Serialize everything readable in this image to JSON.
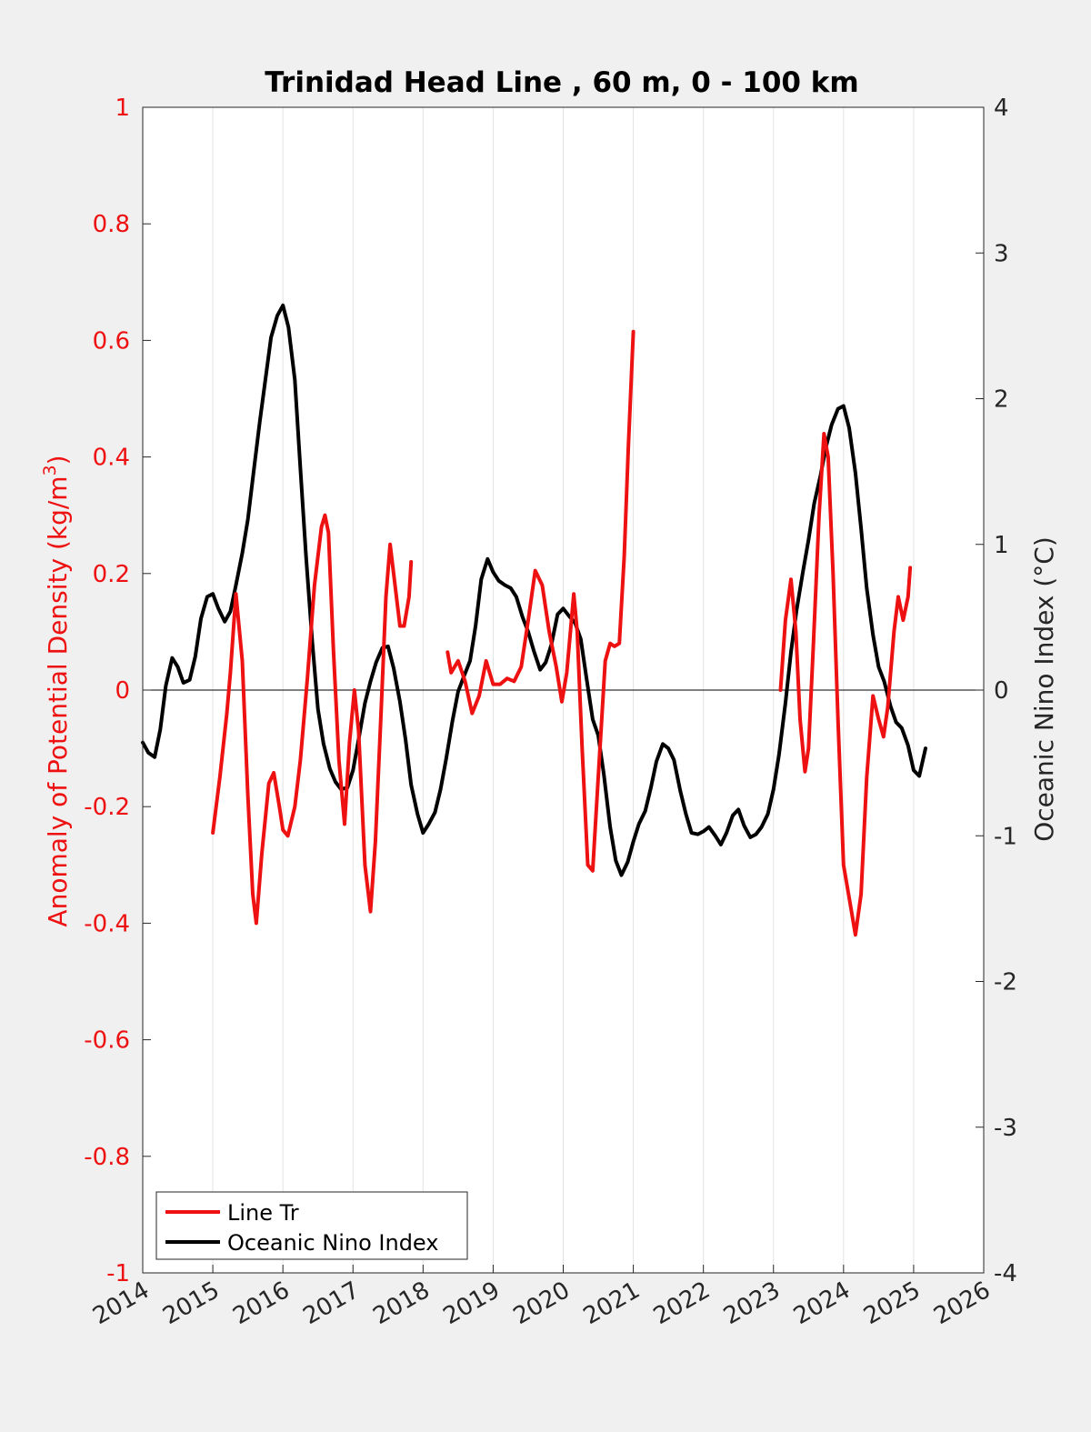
{
  "chart_data": {
    "type": "line",
    "title": "Trinidad Head Line , 60 m, 0 - 100 km",
    "ylabel_left_main": "Anomaly of Potential Density (kg/m",
    "ylabel_left_sup": "3",
    "ylabel_left_close": ")",
    "ylabel_right": "Oceanic Nino Index (°C)",
    "xlim": [
      2014,
      2026
    ],
    "ylim_left": [
      -1,
      1
    ],
    "ylim_right": [
      -4,
      4
    ],
    "x_ticks": [
      "2014",
      "2015",
      "2016",
      "2017",
      "2018",
      "2019",
      "2020",
      "2021",
      "2022",
      "2023",
      "2024",
      "2025",
      "2026"
    ],
    "y_ticks_left": [
      "-1",
      "-0.8",
      "-0.6",
      "-0.4",
      "-0.2",
      "0",
      "0.2",
      "0.4",
      "0.6",
      "0.8",
      "1"
    ],
    "y_ticks_right": [
      "-4",
      "-3",
      "-2",
      "-1",
      "0",
      "1",
      "2",
      "3",
      "4"
    ],
    "grid": "vertical",
    "legend_position": "bottom-left",
    "colors": {
      "line_tr": "#ee1111",
      "oni": "#000000",
      "plot_bg": "#ffffff",
      "figure_bg": "#f0f0f0",
      "left_axis": "#ee1111"
    },
    "series": [
      {
        "name": "Line Tr",
        "axis": "left",
        "segments": [
          [
            [
              2015.0,
              -0.245
            ],
            [
              2015.1,
              -0.15
            ],
            [
              2015.2,
              -0.04
            ],
            [
              2015.25,
              0.03
            ],
            [
              2015.33,
              0.165
            ],
            [
              2015.42,
              0.05
            ],
            [
              2015.5,
              -0.18
            ],
            [
              2015.57,
              -0.35
            ],
            [
              2015.62,
              -0.4
            ],
            [
              2015.7,
              -0.28
            ],
            [
              2015.8,
              -0.16
            ],
            [
              2015.87,
              -0.142
            ],
            [
              2015.95,
              -0.2
            ],
            [
              2016.0,
              -0.24
            ],
            [
              2016.07,
              -0.25
            ],
            [
              2016.17,
              -0.2
            ],
            [
              2016.25,
              -0.12
            ],
            [
              2016.35,
              0.02
            ],
            [
              2016.45,
              0.18
            ],
            [
              2016.55,
              0.28
            ],
            [
              2016.6,
              0.3
            ],
            [
              2016.65,
              0.27
            ],
            [
              2016.72,
              0.07
            ],
            [
              2016.8,
              -0.12
            ],
            [
              2016.88,
              -0.23
            ],
            [
              2016.95,
              -0.09
            ],
            [
              2017.02,
              0.0
            ],
            [
              2017.08,
              -0.07
            ],
            [
              2017.17,
              -0.3
            ],
            [
              2017.25,
              -0.38
            ],
            [
              2017.32,
              -0.26
            ],
            [
              2017.4,
              -0.04
            ],
            [
              2017.47,
              0.16
            ],
            [
              2017.53,
              0.25
            ],
            [
              2017.6,
              0.18
            ],
            [
              2017.67,
              0.11
            ],
            [
              2017.73,
              0.11
            ],
            [
              2017.8,
              0.16
            ],
            [
              2017.83,
              0.22
            ]
          ],
          [
            [
              2018.35,
              0.065
            ],
            [
              2018.4,
              0.03
            ],
            [
              2018.5,
              0.05
            ],
            [
              2018.6,
              0.015
            ],
            [
              2018.7,
              -0.04
            ],
            [
              2018.8,
              -0.01
            ],
            [
              2018.9,
              0.05
            ],
            [
              2019.0,
              0.01
            ],
            [
              2019.1,
              0.01
            ],
            [
              2019.2,
              0.02
            ],
            [
              2019.3,
              0.015
            ],
            [
              2019.4,
              0.04
            ],
            [
              2019.5,
              0.12
            ],
            [
              2019.6,
              0.205
            ],
            [
              2019.7,
              0.18
            ],
            [
              2019.8,
              0.1
            ],
            [
              2019.9,
              0.04
            ],
            [
              2019.98,
              -0.02
            ],
            [
              2020.05,
              0.03
            ],
            [
              2020.15,
              0.165
            ],
            [
              2020.2,
              0.1
            ],
            [
              2020.27,
              -0.1
            ],
            [
              2020.35,
              -0.3
            ],
            [
              2020.42,
              -0.31
            ],
            [
              2020.5,
              -0.15
            ],
            [
              2020.6,
              0.05
            ],
            [
              2020.67,
              0.08
            ],
            [
              2020.73,
              0.075
            ],
            [
              2020.8,
              0.08
            ],
            [
              2020.87,
              0.23
            ],
            [
              2020.93,
              0.42
            ],
            [
              2021.0,
              0.615
            ]
          ],
          [
            [
              2023.1,
              0.0
            ],
            [
              2023.17,
              0.12
            ],
            [
              2023.25,
              0.19
            ],
            [
              2023.32,
              0.1
            ],
            [
              2023.38,
              -0.05
            ],
            [
              2023.45,
              -0.14
            ],
            [
              2023.5,
              -0.1
            ],
            [
              2023.57,
              0.08
            ],
            [
              2023.65,
              0.3
            ],
            [
              2023.72,
              0.44
            ],
            [
              2023.78,
              0.4
            ],
            [
              2023.85,
              0.2
            ],
            [
              2023.92,
              -0.05
            ],
            [
              2024.0,
              -0.3
            ],
            [
              2024.1,
              -0.37
            ],
            [
              2024.17,
              -0.42
            ],
            [
              2024.25,
              -0.35
            ],
            [
              2024.33,
              -0.15
            ],
            [
              2024.42,
              -0.01
            ],
            [
              2024.5,
              -0.05
            ],
            [
              2024.57,
              -0.08
            ],
            [
              2024.63,
              -0.03
            ],
            [
              2024.72,
              0.1
            ],
            [
              2024.78,
              0.16
            ],
            [
              2024.85,
              0.12
            ],
            [
              2024.92,
              0.16
            ],
            [
              2024.95,
              0.21
            ]
          ]
        ]
      },
      {
        "name": "Oceanic Nino Index",
        "axis": "right",
        "segments": [
          [
            [
              2014.0,
              -0.36
            ],
            [
              2014.08,
              -0.43
            ],
            [
              2014.17,
              -0.46
            ],
            [
              2014.25,
              -0.27
            ],
            [
              2014.33,
              0.03
            ],
            [
              2014.42,
              0.22
            ],
            [
              2014.5,
              0.16
            ],
            [
              2014.58,
              0.05
            ],
            [
              2014.67,
              0.07
            ],
            [
              2014.75,
              0.23
            ],
            [
              2014.83,
              0.49
            ],
            [
              2014.92,
              0.64
            ],
            [
              2015.0,
              0.66
            ],
            [
              2015.08,
              0.56
            ],
            [
              2015.17,
              0.47
            ],
            [
              2015.25,
              0.54
            ],
            [
              2015.33,
              0.72
            ],
            [
              2015.42,
              0.94
            ],
            [
              2015.5,
              1.17
            ],
            [
              2015.58,
              1.49
            ],
            [
              2015.67,
              1.84
            ],
            [
              2015.75,
              2.13
            ],
            [
              2015.83,
              2.42
            ],
            [
              2015.92,
              2.57
            ],
            [
              2016.0,
              2.64
            ],
            [
              2016.08,
              2.49
            ],
            [
              2016.17,
              2.13
            ],
            [
              2016.25,
              1.52
            ],
            [
              2016.33,
              0.92
            ],
            [
              2016.42,
              0.33
            ],
            [
              2016.5,
              -0.13
            ],
            [
              2016.58,
              -0.37
            ],
            [
              2016.67,
              -0.54
            ],
            [
              2016.75,
              -0.63
            ],
            [
              2016.83,
              -0.68
            ],
            [
              2016.92,
              -0.67
            ],
            [
              2017.0,
              -0.55
            ],
            [
              2017.08,
              -0.34
            ],
            [
              2017.17,
              -0.09
            ],
            [
              2017.25,
              0.06
            ],
            [
              2017.33,
              0.19
            ],
            [
              2017.42,
              0.29
            ],
            [
              2017.5,
              0.3
            ],
            [
              2017.58,
              0.15
            ],
            [
              2017.67,
              -0.08
            ],
            [
              2017.75,
              -0.34
            ],
            [
              2017.83,
              -0.65
            ],
            [
              2017.92,
              -0.85
            ],
            [
              2018.0,
              -0.98
            ],
            [
              2018.08,
              -0.92
            ],
            [
              2018.17,
              -0.84
            ],
            [
              2018.25,
              -0.68
            ],
            [
              2018.33,
              -0.47
            ],
            [
              2018.42,
              -0.21
            ],
            [
              2018.5,
              -0.01
            ],
            [
              2018.58,
              0.09
            ],
            [
              2018.67,
              0.2
            ],
            [
              2018.75,
              0.44
            ],
            [
              2018.83,
              0.76
            ],
            [
              2018.92,
              0.9
            ],
            [
              2019.0,
              0.81
            ],
            [
              2019.08,
              0.75
            ],
            [
              2019.17,
              0.72
            ],
            [
              2019.25,
              0.7
            ],
            [
              2019.33,
              0.64
            ],
            [
              2019.42,
              0.5
            ],
            [
              2019.5,
              0.4
            ],
            [
              2019.58,
              0.27
            ],
            [
              2019.67,
              0.14
            ],
            [
              2019.75,
              0.19
            ],
            [
              2019.83,
              0.31
            ],
            [
              2019.92,
              0.52
            ],
            [
              2020.0,
              0.56
            ],
            [
              2020.08,
              0.51
            ],
            [
              2020.17,
              0.46
            ],
            [
              2020.25,
              0.35
            ],
            [
              2020.33,
              0.09
            ],
            [
              2020.42,
              -0.2
            ],
            [
              2020.5,
              -0.31
            ],
            [
              2020.58,
              -0.58
            ],
            [
              2020.67,
              -0.94
            ],
            [
              2020.75,
              -1.17
            ],
            [
              2020.83,
              -1.27
            ],
            [
              2020.92,
              -1.18
            ],
            [
              2021.0,
              -1.04
            ],
            [
              2021.08,
              -0.92
            ],
            [
              2021.17,
              -0.83
            ],
            [
              2021.25,
              -0.67
            ],
            [
              2021.33,
              -0.49
            ],
            [
              2021.42,
              -0.37
            ],
            [
              2021.5,
              -0.4
            ],
            [
              2021.58,
              -0.48
            ],
            [
              2021.67,
              -0.69
            ],
            [
              2021.75,
              -0.85
            ],
            [
              2021.83,
              -0.98
            ],
            [
              2021.92,
              -0.99
            ],
            [
              2022.0,
              -0.97
            ],
            [
              2022.08,
              -0.94
            ],
            [
              2022.17,
              -1.0
            ],
            [
              2022.25,
              -1.06
            ],
            [
              2022.33,
              -0.98
            ],
            [
              2022.42,
              -0.86
            ],
            [
              2022.5,
              -0.82
            ],
            [
              2022.58,
              -0.93
            ],
            [
              2022.67,
              -1.01
            ],
            [
              2022.75,
              -0.99
            ],
            [
              2022.83,
              -0.94
            ],
            [
              2022.92,
              -0.85
            ],
            [
              2023.0,
              -0.68
            ],
            [
              2023.08,
              -0.44
            ],
            [
              2023.17,
              -0.09
            ],
            [
              2023.25,
              0.26
            ],
            [
              2023.33,
              0.55
            ],
            [
              2023.42,
              0.81
            ],
            [
              2023.5,
              1.03
            ],
            [
              2023.58,
              1.28
            ],
            [
              2023.67,
              1.47
            ],
            [
              2023.75,
              1.67
            ],
            [
              2023.83,
              1.82
            ],
            [
              2023.92,
              1.93
            ],
            [
              2024.0,
              1.95
            ],
            [
              2024.08,
              1.8
            ],
            [
              2024.17,
              1.49
            ],
            [
              2024.25,
              1.11
            ],
            [
              2024.33,
              0.7
            ],
            [
              2024.42,
              0.38
            ],
            [
              2024.5,
              0.16
            ],
            [
              2024.58,
              0.06
            ],
            [
              2024.67,
              -0.11
            ],
            [
              2024.75,
              -0.22
            ],
            [
              2024.83,
              -0.26
            ],
            [
              2024.92,
              -0.38
            ],
            [
              2025.0,
              -0.55
            ],
            [
              2025.08,
              -0.59
            ],
            [
              2025.17,
              -0.4
            ]
          ]
        ]
      }
    ]
  }
}
